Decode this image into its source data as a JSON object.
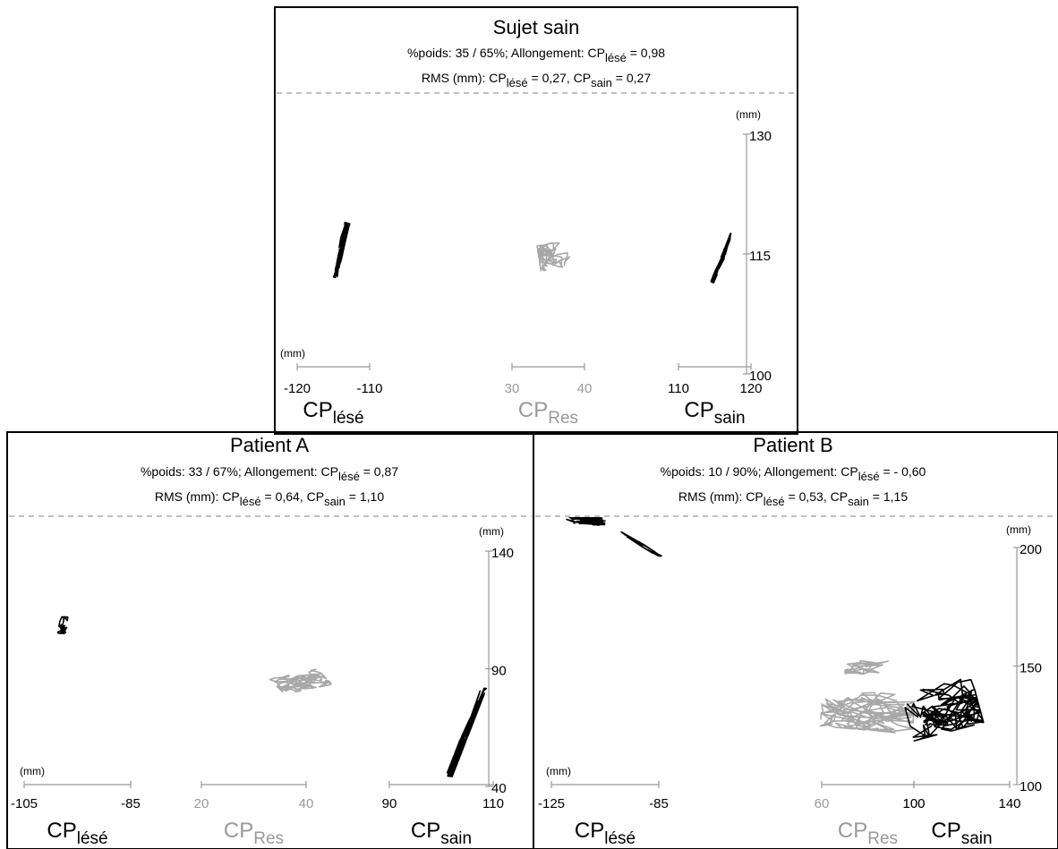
{
  "chart_data": [
    {
      "type": "scatter",
      "title": "Sujet sain",
      "subtitle_line1": {
        "pre": "%poids: 35 / 65%; Allongement: CP",
        "sub": "lésé",
        "post": " = 0,98"
      },
      "subtitle_line2": {
        "pre": "RMS (mm): CP",
        "sub1": "lésé",
        "mid": " = 0,27, CP",
        "sub2": "sain",
        "post": " = 0,27"
      },
      "y_unit": "(mm)",
      "x_unit": "(mm)",
      "yaxis": {
        "range": [
          100,
          130
        ],
        "ticks": [
          "100",
          "115",
          "130"
        ]
      },
      "groups": [
        {
          "name": "CP",
          "sub": "lésé",
          "color": "#000000",
          "xrange": [
            -120,
            -110
          ],
          "ticks": [
            "-120",
            "-110"
          ]
        },
        {
          "name": "CP",
          "sub": "Res",
          "color": "#999999",
          "xrange": [
            30,
            40
          ],
          "ticks": [
            "30",
            "40"
          ]
        },
        {
          "name": "CP",
          "sub": "sain",
          "color": "#000000",
          "xrange": [
            110,
            120
          ],
          "ticks": [
            "110",
            "120"
          ]
        }
      ],
      "clusters": [
        {
          "group": 0,
          "cx": -114.0,
          "cy": 115.5,
          "halfLength": 3.5,
          "halfWidth": 0.4,
          "angleDeg": 75,
          "count": 90,
          "seed": 11
        },
        {
          "group": 1,
          "cx": 35.8,
          "cy": 114.8,
          "halfLength": 2.1,
          "halfWidth": 1.6,
          "angleDeg": 10,
          "count": 110,
          "seed": 23
        },
        {
          "group": 2,
          "cx": 116.0,
          "cy": 114.5,
          "halfLength": 3.3,
          "halfWidth": 0.3,
          "angleDeg": 68,
          "count": 70,
          "seed": 37
        }
      ]
    },
    {
      "type": "scatter",
      "title": "Patient A",
      "subtitle_line1": {
        "pre": "%poids: 33 / 67%; Allongement: CP",
        "sub": "lésé",
        "post": " = 0,87"
      },
      "subtitle_line2": {
        "pre": "RMS (mm): CP",
        "sub1": "lésé",
        "mid": " = 0,64, CP",
        "sub2": "sain",
        "post": " = 1,10"
      },
      "y_unit": "(mm)",
      "x_unit": "(mm)",
      "yaxis": {
        "range": [
          40,
          140
        ],
        "ticks": [
          "40",
          "90",
          "140"
        ]
      },
      "groups": [
        {
          "name": "CP",
          "sub": "lésé",
          "color": "#000000",
          "xrange": [
            -105,
            -85
          ],
          "ticks": [
            "-105",
            "-85"
          ]
        },
        {
          "name": "CP",
          "sub": "Res",
          "color": "#999999",
          "xrange": [
            20,
            40
          ],
          "ticks": [
            "20",
            "40"
          ]
        },
        {
          "name": "CP",
          "sub": "sain",
          "color": "#000000",
          "xrange": [
            90,
            110
          ],
          "ticks": [
            "90",
            "110"
          ]
        }
      ],
      "clusters": [
        {
          "group": 0,
          "cx": -97.5,
          "cy": 108.5,
          "halfLength": 3.5,
          "halfWidth": 1.0,
          "angleDeg": 85,
          "count": 80,
          "seed": 41
        },
        {
          "group": 1,
          "cx": 39.0,
          "cy": 84.5,
          "halfLength": 5.0,
          "halfWidth": 3.5,
          "angleDeg": 25,
          "count": 130,
          "seed": 53
        },
        {
          "group": 2,
          "cx": 104.8,
          "cy": 63.0,
          "halfLength": 19.0,
          "halfWidth": 0.6,
          "angleDeg": 80,
          "count": 150,
          "seed": 67
        }
      ]
    },
    {
      "type": "scatter",
      "title": "Patient B",
      "subtitle_line1": {
        "pre": "%poids: 10 / 90%; Allongement: CP",
        "sub": "lésé",
        "post": " = - 0,60"
      },
      "subtitle_line2": {
        "pre": "RMS (mm): CP",
        "sub1": "lésé",
        "mid": " = 0,53, CP",
        "sub2": "sain",
        "post": " = 1,15"
      },
      "y_unit": "(mm)",
      "x_unit": "(mm)",
      "yaxis": {
        "range": [
          100,
          200
        ],
        "ticks": [
          "100",
          "150",
          "200"
        ]
      },
      "groups": [
        {
          "name": "CP",
          "sub": "lésé",
          "color": "#000000",
          "xrange": [
            -125,
            -85
          ],
          "ticks": [
            "-125",
            "-85"
          ]
        },
        {
          "name": "CP",
          "sub": "Res",
          "color": "#999999",
          "xrange": [
            60,
            100
          ],
          "ticks": [
            "60",
            "100"
          ]
        },
        {
          "name": "CP",
          "sub": "sain",
          "color": "#000000",
          "xrange": [
            100,
            140
          ],
          "ticks": [
            "100",
            "140"
          ]
        }
      ],
      "clusters": [
        {
          "group": 0,
          "cx": -114.0,
          "cy": 212.0,
          "halfLength": 9.0,
          "halfWidth": 2.0,
          "angleDeg": -5,
          "count": 110,
          "seed": 71
        },
        {
          "group": 0,
          "cx": -91.5,
          "cy": 201.5,
          "halfLength": 9.0,
          "halfWidth": 0.8,
          "angleDeg": -35,
          "count": 40,
          "seed": 73
        },
        {
          "group": 1,
          "cx": 80.0,
          "cy": 131.0,
          "halfLength": 20.0,
          "halfWidth": 8.0,
          "angleDeg": -5,
          "count": 170,
          "seed": 83
        },
        {
          "group": 1,
          "cx": 82.0,
          "cy": 150.0,
          "halfLength": 12.0,
          "halfWidth": 3.0,
          "angleDeg": 5,
          "count": 50,
          "seed": 85
        },
        {
          "group": 2,
          "cx": 112.0,
          "cy": 132.0,
          "halfLength": 15.0,
          "halfWidth": 10.0,
          "angleDeg": 15,
          "count": 160,
          "seed": 97
        },
        {
          "group": 2,
          "cx": 109.0,
          "cy": 128.0,
          "halfLength": 5.0,
          "halfWidth": 3.0,
          "angleDeg": 0,
          "count": 60,
          "seed": 99
        }
      ]
    }
  ]
}
